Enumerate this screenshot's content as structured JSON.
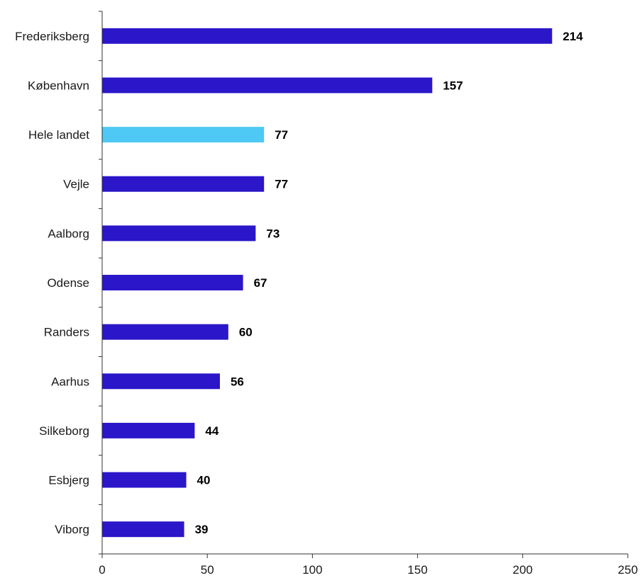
{
  "chart_data": {
    "type": "bar",
    "orientation": "horizontal",
    "categories": [
      "Frederiksberg",
      "København",
      "Hele landet",
      "Vejle",
      "Aalborg",
      "Odense",
      "Randers",
      "Aarhus",
      "Silkeborg",
      "Esbjerg",
      "Viborg"
    ],
    "values": [
      214,
      157,
      77,
      77,
      73,
      67,
      60,
      56,
      44,
      40,
      39
    ],
    "value_labels": [
      "214",
      "157",
      "77",
      "77",
      "73",
      "67",
      "60",
      "56",
      "44",
      "40",
      "39"
    ],
    "highlight_category": "Hele landet",
    "xlim": [
      0,
      250
    ],
    "xticks": [
      0,
      50,
      100,
      150,
      200,
      250
    ],
    "xtick_labels": [
      "0",
      "50",
      "100",
      "150",
      "200",
      "250"
    ],
    "grid": false,
    "colors": {
      "bar": "#2b16c9",
      "highlight": "#4ec8f4"
    }
  }
}
